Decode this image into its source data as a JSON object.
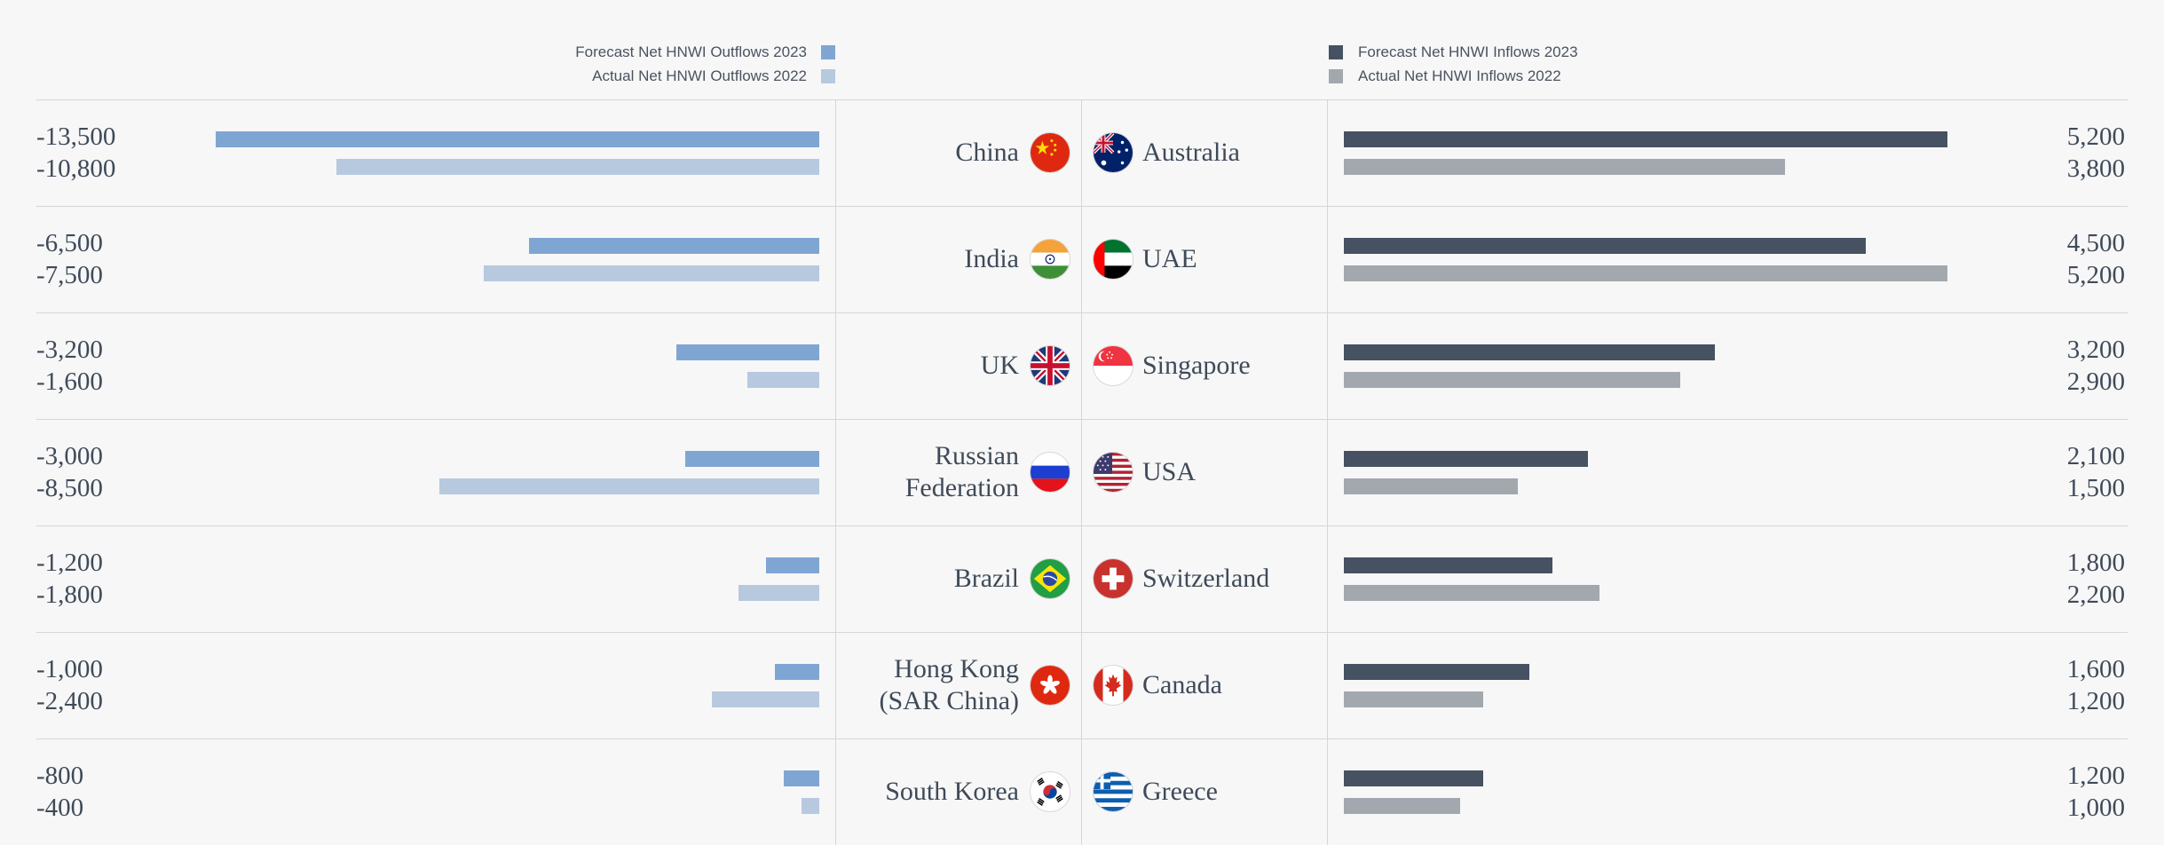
{
  "legend": {
    "outflow_forecast": "Forecast Net HNWI Outflows 2023",
    "outflow_actual": "Actual Net HNWI Outflows 2022",
    "inflow_forecast": "Forecast Net HNWI Inflows 2023",
    "inflow_actual": "Actual Net HNWI Inflows 2022"
  },
  "colors": {
    "outflow_forecast": "#7fa6d3",
    "outflow_actual": "#b7c9df",
    "inflow_forecast": "#465262",
    "inflow_actual": "#a2a8ae"
  },
  "chart_data": {
    "type": "bar",
    "outflow_countries": [
      "China",
      "India",
      "UK",
      "Russian Federation",
      "Brazil",
      "Hong Kong (SAR China)",
      "South Korea"
    ],
    "outflow_country_lines": [
      [
        "China"
      ],
      [
        "India"
      ],
      [
        "UK"
      ],
      [
        "Russian",
        "Federation"
      ],
      [
        "Brazil"
      ],
      [
        "Hong Kong",
        "(SAR China)"
      ],
      [
        "South Korea"
      ]
    ],
    "outflow_labels_2023": [
      "-13,500",
      "-6,500",
      "-3,200",
      "-3,000",
      "-1,200",
      "-1,000",
      "-800"
    ],
    "outflow_labels_2022": [
      "-10,800",
      "-7,500",
      "-1,600",
      "-8,500",
      "-1,800",
      "-2,400",
      "-400"
    ],
    "outflow_series": [
      {
        "name": "Forecast Net HNWI Outflows 2023",
        "values": [
          -13500,
          -6500,
          -3200,
          -3000,
          -1200,
          -1000,
          -800
        ]
      },
      {
        "name": "Actual Net HNWI Outflows 2022",
        "values": [
          -10800,
          -7500,
          -1600,
          -8500,
          -1800,
          -2400,
          -400
        ]
      }
    ],
    "inflow_countries": [
      "Australia",
      "UAE",
      "Singapore",
      "USA",
      "Switzerland",
      "Canada",
      "Greece"
    ],
    "inflow_labels_2023": [
      "5,200",
      "4,500",
      "3,200",
      "2,100",
      "1,800",
      "1,600",
      "1,200"
    ],
    "inflow_labels_2022": [
      "3,800",
      "5,200",
      "2,900",
      "1,500",
      "2,200",
      "1,200",
      "1,000"
    ],
    "inflow_series": [
      {
        "name": "Forecast Net HNWI Inflows 2023",
        "values": [
          5200,
          4500,
          3200,
          2100,
          1800,
          1600,
          1200
        ]
      },
      {
        "name": "Actual Net HNWI Inflows 2022",
        "values": [
          3800,
          5200,
          2900,
          1500,
          2200,
          1200,
          1000
        ]
      }
    ],
    "outflow_xlim": [
      -13500,
      0
    ],
    "inflow_xlim": [
      0,
      5200
    ]
  },
  "flags": {
    "left": [
      "china-flag-icon",
      "india-flag-icon",
      "uk-flag-icon",
      "russia-flag-icon",
      "brazil-flag-icon",
      "hong-kong-flag-icon",
      "south-korea-flag-icon"
    ],
    "right": [
      "australia-flag-icon",
      "uae-flag-icon",
      "singapore-flag-icon",
      "usa-flag-icon",
      "switzerland-flag-icon",
      "canada-flag-icon",
      "greece-flag-icon"
    ]
  }
}
